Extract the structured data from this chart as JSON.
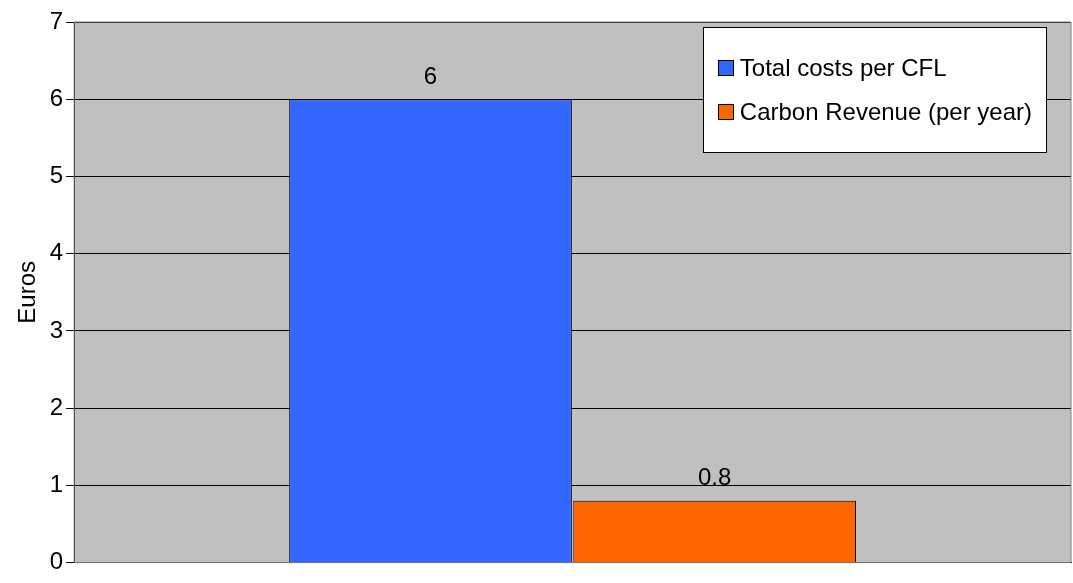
{
  "chart_data": {
    "type": "bar",
    "ylabel": "Euros",
    "categories": [
      null
    ],
    "series": [
      {
        "name": "Total costs per CFL",
        "color": "#3366ff",
        "values": [
          6
        ]
      },
      {
        "name": "Carbon Revenue (per year)",
        "color": "#ff6600",
        "values": [
          0.8
        ]
      }
    ],
    "ylim": [
      0,
      7
    ],
    "yticks": [
      0,
      1,
      2,
      3,
      4,
      5,
      6,
      7
    ],
    "grid": "y",
    "legend": "top right",
    "data_labels": true
  }
}
